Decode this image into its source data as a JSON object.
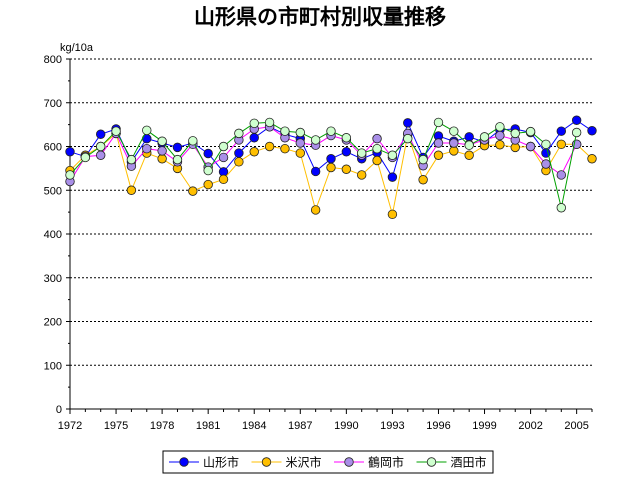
{
  "chart_data": {
    "type": "line",
    "title": "山形県の市町村別収量推移",
    "ylabel": "kg/10a",
    "xlabel": "",
    "ylim": [
      0,
      800
    ],
    "yticks": [
      0,
      100,
      200,
      300,
      400,
      500,
      600,
      700,
      800
    ],
    "xlim": [
      1972,
      2006
    ],
    "xticks": [
      1972,
      1975,
      1978,
      1981,
      1984,
      1987,
      1990,
      1993,
      1996,
      1999,
      2002,
      2005
    ],
    "grid": "horizontal-dashed",
    "legend_position": "bottom",
    "x": [
      1972,
      1973,
      1974,
      1975,
      1976,
      1977,
      1978,
      1979,
      1980,
      1981,
      1982,
      1983,
      1984,
      1985,
      1986,
      1987,
      1988,
      1989,
      1990,
      1991,
      1992,
      1993,
      1994,
      1995,
      1996,
      1997,
      1998,
      1999,
      2000,
      2001,
      2002,
      2003,
      2004,
      2005,
      2006
    ],
    "series": [
      {
        "name": "山形市",
        "color": "#0000ff",
        "stroke": "#0000ff",
        "values": [
          588,
          577,
          628,
          640,
          565,
          618,
          608,
          598,
          608,
          584,
          542,
          585,
          620,
          645,
          628,
          618,
          543,
          572,
          588,
          572,
          586,
          530,
          654,
          575,
          624,
          612,
          622,
          610,
          638,
          640,
          632,
          585,
          635,
          660,
          636
        ]
      },
      {
        "name": "米沢市",
        "color": "#ffbf00",
        "stroke": "#ffbf00",
        "values": [
          545,
          580,
          600,
          630,
          500,
          585,
          572,
          550,
          498,
          513,
          525,
          565,
          588,
          600,
          595,
          585,
          455,
          552,
          548,
          535,
          568,
          445,
          628,
          524,
          580,
          590,
          580,
          602,
          604,
          598,
          600,
          545,
          605,
          605,
          572
        ]
      },
      {
        "name": "鶴岡市",
        "color": "#a98fe8",
        "stroke": "#ff00ff",
        "values": [
          520,
          577,
          580,
          630,
          555,
          595,
          590,
          565,
          605,
          553,
          575,
          615,
          640,
          645,
          620,
          608,
          603,
          625,
          615,
          580,
          618,
          575,
          630,
          556,
          608,
          608,
          604,
          615,
          625,
          615,
          600,
          560,
          535,
          605,
          null
        ]
      },
      {
        "name": "酒田市",
        "color": "#cfffcf",
        "stroke": "#00a000",
        "values": [
          535,
          575,
          600,
          635,
          570,
          637,
          612,
          570,
          613,
          545,
          600,
          630,
          653,
          655,
          635,
          632,
          615,
          635,
          620,
          585,
          595,
          580,
          618,
          570,
          655,
          635,
          603,
          622,
          645,
          630,
          634,
          605,
          460,
          632,
          null
        ]
      }
    ]
  }
}
